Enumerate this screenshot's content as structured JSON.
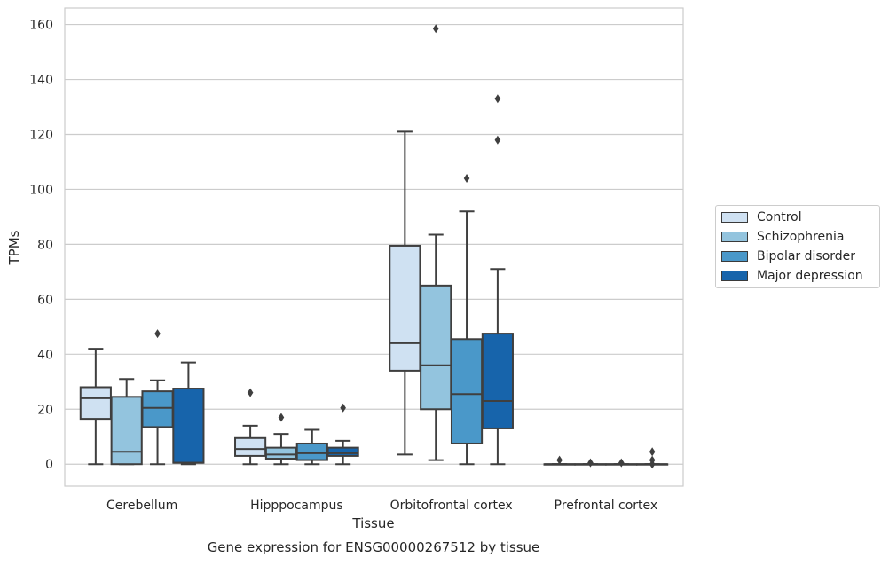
{
  "chart_data": {
    "type": "box",
    "xlabel": "Tissue",
    "ylabel": "TPMs",
    "caption": "Gene expression for ENSG00000267512 by tissue",
    "categories": [
      "Cerebellum",
      "Hipppocampus",
      "Orbitofrontal cortex",
      "Prefrontal cortex"
    ],
    "ylim": [
      -8,
      166
    ],
    "yticks": [
      0,
      20,
      40,
      60,
      80,
      100,
      120,
      140,
      160
    ],
    "grid": true,
    "legend_position": "right",
    "colors": {
      "Control": "#cfe1f2",
      "Schizophrenia": "#93c4de",
      "Bipolar disorder": "#4a98c9",
      "Major depression": "#1764ab"
    },
    "series": [
      {
        "name": "Control",
        "boxes": [
          {
            "whislo": 0,
            "q1": 16.5,
            "med": 24,
            "q3": 28,
            "whishi": 42,
            "fliers": []
          },
          {
            "whislo": 0,
            "q1": 3,
            "med": 5.5,
            "q3": 9.5,
            "whishi": 14,
            "fliers": [
              26
            ]
          },
          {
            "whislo": 3.5,
            "q1": 34,
            "med": 44,
            "q3": 79.5,
            "whishi": 121,
            "fliers": []
          },
          {
            "whislo": 0,
            "q1": 0,
            "med": 0,
            "q3": 0,
            "whishi": 0,
            "fliers": [
              1.5
            ]
          }
        ]
      },
      {
        "name": "Schizophrenia",
        "boxes": [
          {
            "whislo": 0,
            "q1": 0,
            "med": 4.5,
            "q3": 24.5,
            "whishi": 31,
            "fliers": []
          },
          {
            "whislo": 0,
            "q1": 2,
            "med": 3.5,
            "q3": 6,
            "whishi": 11,
            "fliers": [
              17
            ]
          },
          {
            "whislo": 1.5,
            "q1": 20,
            "med": 36,
            "q3": 65,
            "whishi": 83.5,
            "fliers": [
              158.5
            ]
          },
          {
            "whislo": 0,
            "q1": 0,
            "med": 0,
            "q3": 0,
            "whishi": 0,
            "fliers": [
              0.5
            ]
          }
        ]
      },
      {
        "name": "Bipolar disorder",
        "boxes": [
          {
            "whislo": 0,
            "q1": 13.5,
            "med": 20.5,
            "q3": 26.5,
            "whishi": 30.5,
            "fliers": [
              47.5
            ]
          },
          {
            "whislo": 0,
            "q1": 1.5,
            "med": 4,
            "q3": 7.5,
            "whishi": 12.5,
            "fliers": []
          },
          {
            "whislo": 0,
            "q1": 7.5,
            "med": 25.5,
            "q3": 45.5,
            "whishi": 92,
            "fliers": [
              104
            ]
          },
          {
            "whislo": 0,
            "q1": 0,
            "med": 0,
            "q3": 0,
            "whishi": 0,
            "fliers": [
              0.5
            ]
          }
        ]
      },
      {
        "name": "Major depression",
        "boxes": [
          {
            "whislo": 0,
            "q1": 0.5,
            "med": 0.5,
            "q3": 27.5,
            "whishi": 37,
            "fliers": []
          },
          {
            "whislo": 0,
            "q1": 3,
            "med": 4,
            "q3": 6,
            "whishi": 8.5,
            "fliers": [
              20.5
            ]
          },
          {
            "whislo": 0,
            "q1": 13,
            "med": 23,
            "q3": 47.5,
            "whishi": 71,
            "fliers": [
              118,
              133
            ]
          },
          {
            "whislo": 0,
            "q1": 0,
            "med": 0,
            "q3": 0,
            "whishi": 0,
            "fliers": [
              0,
              1.5,
              4.5
            ]
          }
        ]
      }
    ]
  }
}
